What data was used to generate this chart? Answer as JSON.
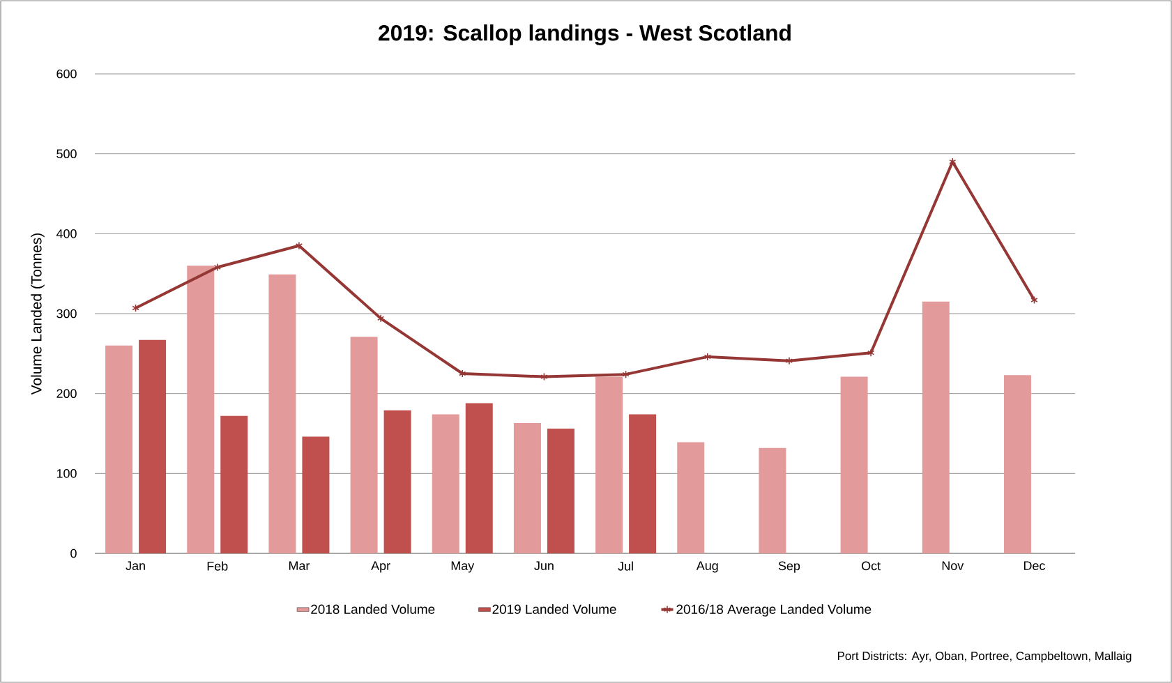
{
  "chart_data": {
    "type": "bar",
    "title": "2019: Scallop landings - West Scotland",
    "ylabel": "Volume Landed (Tonnes)",
    "categories": [
      "Jan",
      "Feb",
      "Mar",
      "Apr",
      "May",
      "Jun",
      "Jul",
      "Aug",
      "Sep",
      "Oct",
      "Nov",
      "Dec"
    ],
    "series": [
      {
        "name": "2018  Landed Volume",
        "color": "#e39a9a",
        "values": [
          260,
          360,
          349,
          271,
          174,
          163,
          221,
          139,
          132,
          221,
          315,
          223
        ]
      },
      {
        "name": "2019 Landed Volume",
        "color": "#c0504d",
        "values": [
          267,
          172,
          146,
          179,
          188,
          156,
          174,
          null,
          null,
          null,
          null,
          null
        ]
      },
      {
        "name": "2016/18 Average Landed Volume",
        "type": "line",
        "marker": "cross",
        "color": "#953735",
        "values": [
          307,
          358,
          385,
          294,
          225,
          221,
          224,
          246,
          241,
          251,
          490,
          317
        ]
      }
    ],
    "ylim": [
      0,
      600
    ],
    "yticks": [
      0,
      100,
      200,
      300,
      400,
      500,
      600
    ],
    "grid": "y",
    "legend": "bottom",
    "annotations": [
      "Port Districts:    Ayr, Oban, Portree, Campbeltown, Mallaig"
    ]
  }
}
